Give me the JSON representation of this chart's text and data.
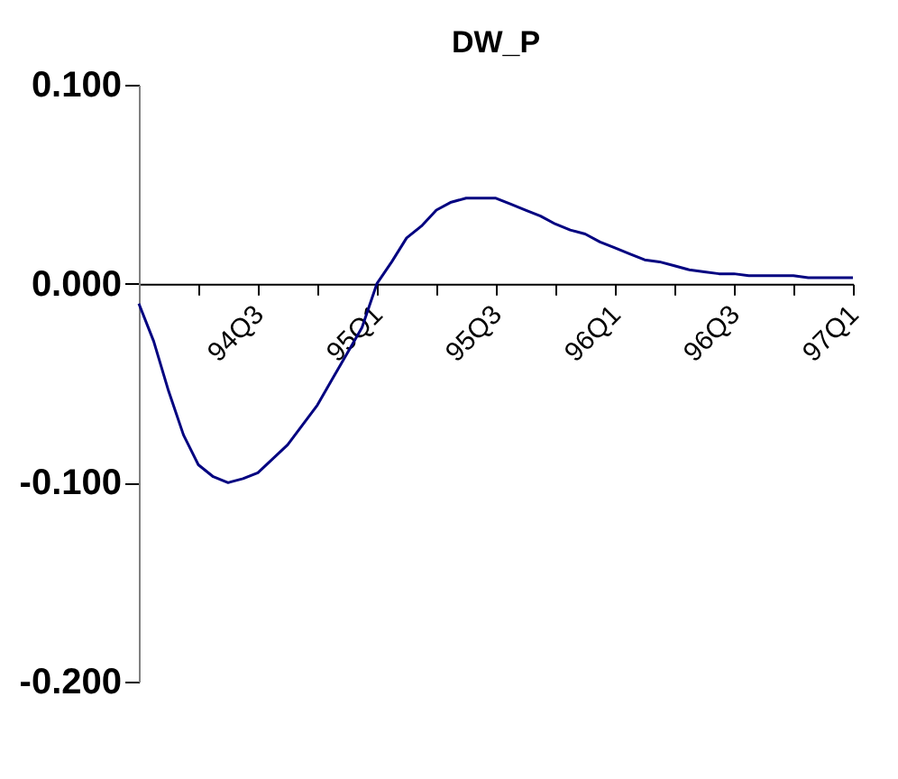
{
  "chart_data": {
    "type": "line",
    "title": "DW_P",
    "categories": [
      null,
      null,
      null,
      null,
      null,
      null,
      null,
      null,
      "94Q3",
      null,
      null,
      null,
      null,
      null,
      null,
      null,
      "95Q1",
      null,
      null,
      null,
      null,
      null,
      null,
      null,
      "95Q3",
      null,
      null,
      null,
      null,
      null,
      null,
      null,
      "96Q1",
      null,
      null,
      null,
      null,
      null,
      null,
      null,
      "96Q3",
      null,
      null,
      null,
      null,
      null,
      null,
      null,
      "97Q1"
    ],
    "series": [
      {
        "color": "#000080",
        "values": [
          -0.01,
          -0.029,
          -0.054,
          -0.076,
          -0.091,
          -0.097,
          -0.1,
          -0.098,
          -0.095,
          -0.088,
          -0.081,
          -0.071,
          -0.061,
          -0.048,
          -0.035,
          -0.022,
          0.0,
          0.011,
          0.023,
          0.029,
          0.037,
          0.041,
          0.043,
          0.043,
          0.043,
          0.04,
          0.037,
          0.034,
          0.03,
          0.027,
          0.025,
          0.021,
          0.018,
          0.015,
          0.012,
          0.011,
          0.009,
          0.007,
          0.006,
          0.005,
          0.005,
          0.004,
          0.004,
          0.004,
          0.004,
          0.003,
          0.003,
          0.003,
          0.003
        ]
      }
    ],
    "ylim": [
      -0.2,
      0.1
    ],
    "yticks": [
      {
        "value": 0.1,
        "label": "0.100"
      },
      {
        "value": 0.0,
        "label": "0.000"
      },
      {
        "value": -0.1,
        "label": "-0.100"
      },
      {
        "value": -0.2,
        "label": "-0.200"
      }
    ],
    "grid": false,
    "legend": false,
    "marker": "none",
    "line_style": "solid"
  }
}
